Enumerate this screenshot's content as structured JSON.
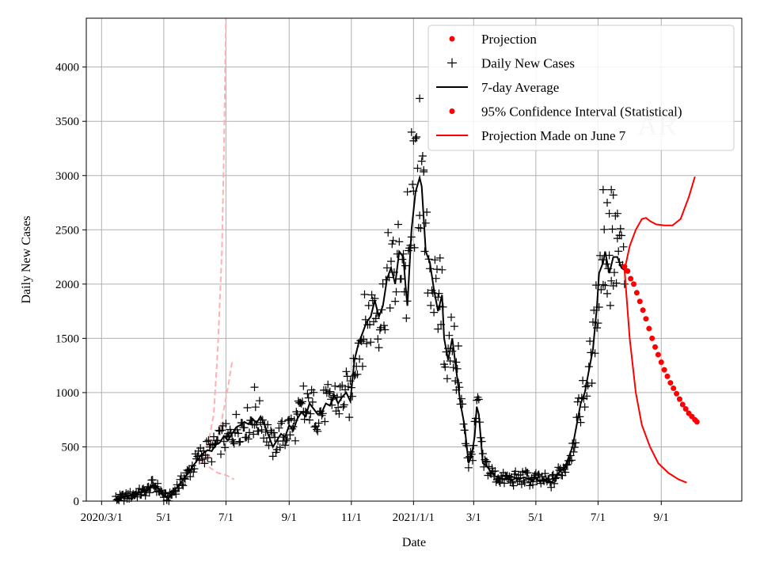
{
  "chart_data": {
    "type": "line",
    "xlabel": "Date",
    "ylabel": "Daily New Cases",
    "ylim": [
      0,
      4450
    ],
    "yticks": [
      0,
      500,
      1000,
      1500,
      2000,
      2500,
      3000,
      3500,
      4000
    ],
    "xlim": [
      -15,
      628
    ],
    "x_units": "days since 2020-03-01",
    "xticks": [
      {
        "day": 0,
        "label": "2020/3/1"
      },
      {
        "day": 61,
        "label": "5/1"
      },
      {
        "day": 122,
        "label": "7/1"
      },
      {
        "day": 184,
        "label": "9/1"
      },
      {
        "day": 245,
        "label": "11/1"
      },
      {
        "day": 306,
        "label": "2021/1/1"
      },
      {
        "day": 365,
        "label": "3/1"
      },
      {
        "day": 426,
        "label": "5/1"
      },
      {
        "day": 487,
        "label": "7/1"
      },
      {
        "day": 549,
        "label": "9/1"
      }
    ],
    "grid": true,
    "watermark": "AR",
    "legend_position": "top-right",
    "legend": [
      {
        "label": "Projection",
        "style": "dot",
        "color": "#ff0000"
      },
      {
        "label": "Daily New Cases",
        "style": "plus",
        "color": "#000000"
      },
      {
        "label": "7-day Average",
        "style": "line",
        "color": "#000000"
      },
      {
        "label": "95% Confidence Interval (Statistical)",
        "style": "dot",
        "color": "#ff0000"
      },
      {
        "label": "Projection Made on June 7",
        "style": "line",
        "color": "#ff0000"
      }
    ],
    "series": {
      "seven_day_average": {
        "name": "7-day Average",
        "color": "#000000",
        "points": [
          [
            14,
            20
          ],
          [
            24,
            40
          ],
          [
            34,
            70
          ],
          [
            44,
            90
          ],
          [
            50,
            150
          ],
          [
            54,
            130
          ],
          [
            58,
            90
          ],
          [
            62,
            40
          ],
          [
            66,
            30
          ],
          [
            70,
            80
          ],
          [
            76,
            150
          ],
          [
            82,
            220
          ],
          [
            88,
            300
          ],
          [
            94,
            380
          ],
          [
            98,
            430
          ],
          [
            104,
            470
          ],
          [
            108,
            460
          ],
          [
            112,
            520
          ],
          [
            116,
            540
          ],
          [
            120,
            600
          ],
          [
            124,
            560
          ],
          [
            128,
            620
          ],
          [
            132,
            680
          ],
          [
            136,
            700
          ],
          [
            140,
            730
          ],
          [
            144,
            710
          ],
          [
            148,
            760
          ],
          [
            152,
            720
          ],
          [
            156,
            780
          ],
          [
            160,
            700
          ],
          [
            164,
            600
          ],
          [
            168,
            500
          ],
          [
            172,
            560
          ],
          [
            176,
            620
          ],
          [
            180,
            590
          ],
          [
            184,
            700
          ],
          [
            188,
            650
          ],
          [
            192,
            760
          ],
          [
            196,
            820
          ],
          [
            200,
            780
          ],
          [
            204,
            900
          ],
          [
            208,
            850
          ],
          [
            212,
            800
          ],
          [
            216,
            820
          ],
          [
            220,
            900
          ],
          [
            224,
            880
          ],
          [
            228,
            980
          ],
          [
            232,
            900
          ],
          [
            236,
            960
          ],
          [
            240,
            1000
          ],
          [
            244,
            920
          ],
          [
            248,
            1300
          ],
          [
            252,
            1450
          ],
          [
            256,
            1550
          ],
          [
            260,
            1650
          ],
          [
            264,
            1700
          ],
          [
            268,
            1850
          ],
          [
            272,
            1700
          ],
          [
            276,
            1800
          ],
          [
            280,
            2050
          ],
          [
            284,
            2150
          ],
          [
            288,
            2000
          ],
          [
            292,
            2300
          ],
          [
            296,
            2250
          ],
          [
            298,
            2000
          ],
          [
            300,
            1800
          ],
          [
            304,
            2500
          ],
          [
            308,
            2850
          ],
          [
            312,
            2980
          ],
          [
            314,
            2900
          ],
          [
            318,
            2300
          ],
          [
            322,
            2200
          ],
          [
            326,
            1950
          ],
          [
            330,
            1750
          ],
          [
            334,
            1900
          ],
          [
            336,
            1500
          ],
          [
            340,
            1300
          ],
          [
            344,
            1500
          ],
          [
            348,
            1200
          ],
          [
            352,
            900
          ],
          [
            356,
            700
          ],
          [
            360,
            350
          ],
          [
            363,
            420
          ],
          [
            366,
            600
          ],
          [
            368,
            870
          ],
          [
            370,
            800
          ],
          [
            374,
            350
          ],
          [
            378,
            320
          ],
          [
            382,
            270
          ],
          [
            386,
            230
          ],
          [
            390,
            220
          ],
          [
            394,
            200
          ],
          [
            398,
            210
          ],
          [
            402,
            190
          ],
          [
            406,
            210
          ],
          [
            410,
            200
          ],
          [
            414,
            220
          ],
          [
            418,
            210
          ],
          [
            422,
            190
          ],
          [
            426,
            210
          ],
          [
            430,
            180
          ],
          [
            434,
            200
          ],
          [
            438,
            170
          ],
          [
            442,
            180
          ],
          [
            446,
            230
          ],
          [
            450,
            280
          ],
          [
            454,
            300
          ],
          [
            458,
            400
          ],
          [
            462,
            500
          ],
          [
            466,
            700
          ],
          [
            470,
            900
          ],
          [
            474,
            1000
          ],
          [
            478,
            1200
          ],
          [
            482,
            1400
          ],
          [
            486,
            1800
          ],
          [
            488,
            2100
          ],
          [
            492,
            2200
          ],
          [
            494,
            2300
          ],
          [
            498,
            2100
          ],
          [
            502,
            2250
          ],
          [
            506,
            2250
          ],
          [
            510,
            2150
          ],
          [
            513,
            2130
          ]
        ]
      },
      "projection_line": {
        "name": "Projection Made on June 7",
        "color": "#ff0000",
        "upper": [
          [
            513,
            2130
          ],
          [
            518,
            2350
          ],
          [
            524,
            2500
          ],
          [
            530,
            2600
          ],
          [
            534,
            2610
          ],
          [
            538,
            2580
          ],
          [
            544,
            2550
          ],
          [
            552,
            2540
          ],
          [
            560,
            2540
          ],
          [
            568,
            2600
          ],
          [
            576,
            2800
          ],
          [
            582,
            2990
          ]
        ],
        "lower": [
          [
            513,
            2130
          ],
          [
            518,
            1500
          ],
          [
            524,
            1000
          ],
          [
            530,
            700
          ],
          [
            538,
            500
          ],
          [
            546,
            350
          ],
          [
            556,
            260
          ],
          [
            566,
            200
          ],
          [
            574,
            170
          ]
        ]
      },
      "projection_dots": {
        "name": "95% Confidence Interval (Statistical)",
        "color": "#ff0000",
        "points": [
          [
            513,
            2160
          ],
          [
            516,
            2120
          ],
          [
            519,
            2050
          ],
          [
            522,
            2000
          ],
          [
            525,
            1920
          ],
          [
            528,
            1840
          ],
          [
            531,
            1760
          ],
          [
            534,
            1680
          ],
          [
            537,
            1590
          ],
          [
            540,
            1500
          ],
          [
            543,
            1420
          ],
          [
            546,
            1350
          ],
          [
            549,
            1280
          ],
          [
            552,
            1210
          ],
          [
            555,
            1150
          ],
          [
            558,
            1090
          ],
          [
            561,
            1040
          ],
          [
            564,
            990
          ],
          [
            567,
            940
          ],
          [
            570,
            890
          ],
          [
            573,
            850
          ],
          [
            576,
            810
          ],
          [
            579,
            780
          ],
          [
            582,
            750
          ],
          [
            584,
            730
          ]
        ]
      },
      "early_projection_ci": {
        "name": "early projection bounds (light red, dashed)",
        "color": "#ffb0b0",
        "upper": [
          [
            98,
            350
          ],
          [
            104,
            500
          ],
          [
            110,
            800
          ],
          [
            114,
            1400
          ],
          [
            118,
            2300
          ],
          [
            120,
            3200
          ],
          [
            122,
            4450
          ]
        ],
        "middle": [
          [
            104,
            380
          ],
          [
            110,
            500
          ],
          [
            116,
            650
          ],
          [
            120,
            850
          ],
          [
            124,
            1050
          ],
          [
            128,
            1280
          ]
        ],
        "lower": [
          [
            100,
            380
          ],
          [
            106,
            310
          ],
          [
            114,
            260
          ],
          [
            122,
            240
          ],
          [
            130,
            200
          ]
        ]
      },
      "daily_new_cases": {
        "name": "Daily New Cases",
        "color": "#000000",
        "generation": "scattered around 7-day Average (deterministic jitter)",
        "highlights": [
          [
            312,
            3710
          ],
          [
            304,
            3400
          ],
          [
            306,
            3320
          ],
          [
            316,
            3050
          ],
          [
            300,
            2850
          ],
          [
            492,
            2870
          ],
          [
            500,
            2870
          ],
          [
            502,
            2820
          ],
          [
            496,
            2750
          ],
          [
            498,
            2650
          ],
          [
            508,
            2450
          ],
          [
            506,
            2650
          ],
          [
            332,
            2240
          ],
          [
            330,
            1880
          ],
          [
            150,
            1050
          ],
          [
            198,
            1060
          ],
          [
            350,
            1430
          ],
          [
            348,
            1280
          ]
        ]
      }
    }
  }
}
